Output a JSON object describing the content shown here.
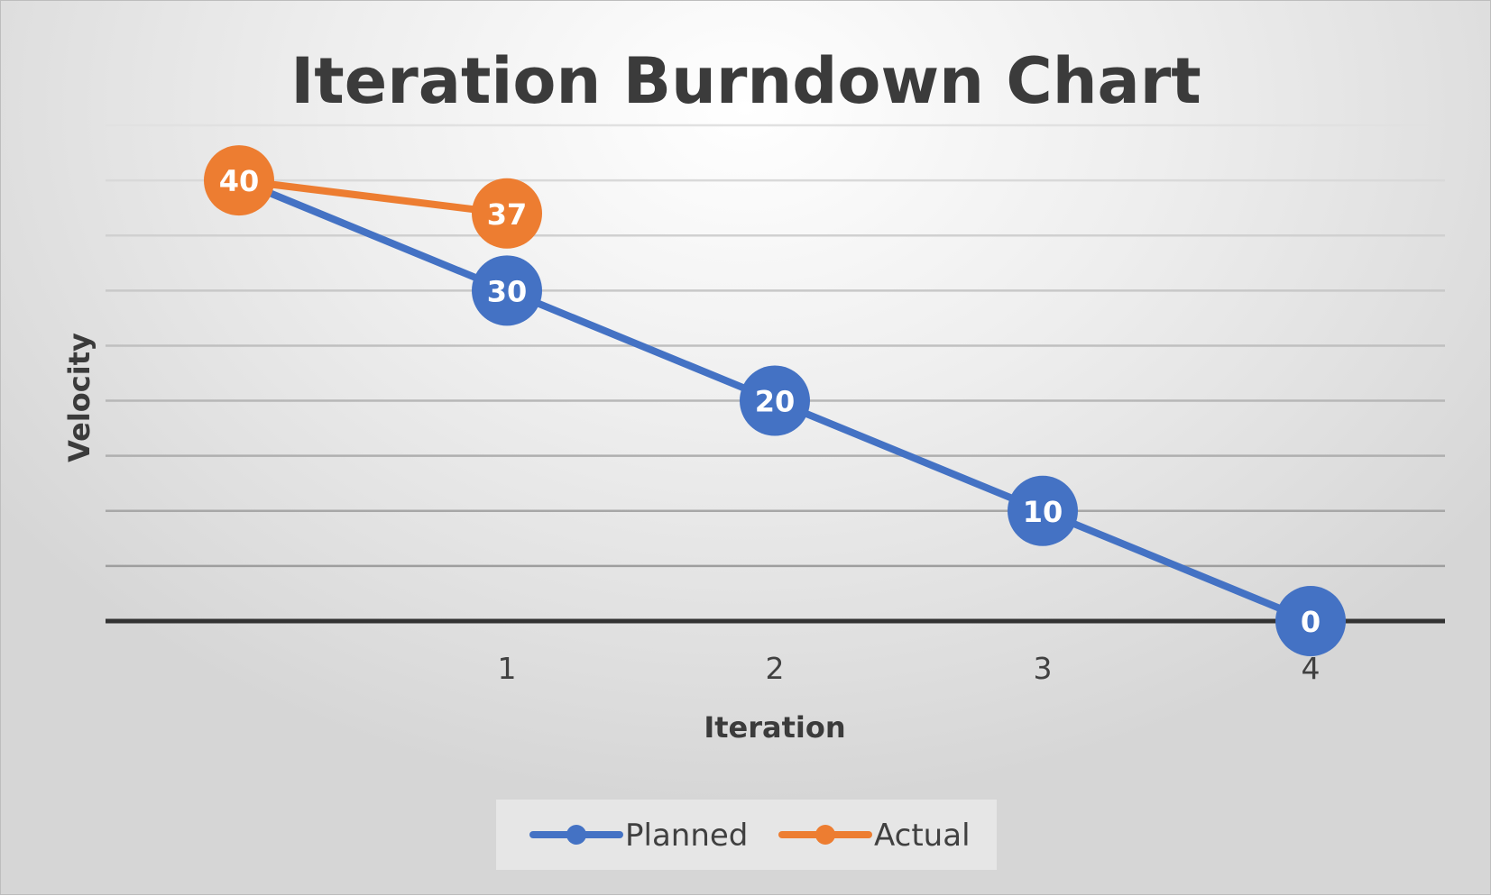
{
  "chart_data": {
    "type": "line",
    "title": "Iteration Burndown Chart",
    "xlabel": "Iteration",
    "ylabel": "Velocity",
    "x": [
      0,
      1,
      2,
      3,
      4
    ],
    "x_tick_labels": [
      "",
      "1",
      "2",
      "3",
      "4"
    ],
    "ylim": [
      0,
      45
    ],
    "y_gridline_step": 5,
    "y_tick_labels_shown": false,
    "grid": true,
    "legend_position": "bottom",
    "series": [
      {
        "name": "Planned",
        "color": "#4472C4",
        "values": [
          40,
          30,
          20,
          10,
          0
        ],
        "labels": [
          "",
          "30",
          "20",
          "10",
          "0"
        ]
      },
      {
        "name": "Actual",
        "color": "#ED7D31",
        "values": [
          40,
          37,
          null,
          null,
          null
        ],
        "labels": [
          "40",
          "37",
          "",
          "",
          ""
        ]
      }
    ]
  }
}
